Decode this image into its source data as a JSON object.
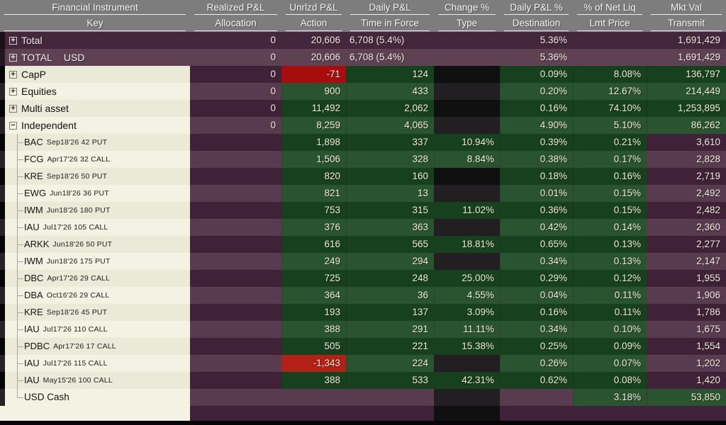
{
  "header": {
    "row1": [
      "Financial Instrument",
      "Realized P&L",
      "Unrlzd P&L",
      "Daily P&L",
      "Change %",
      "Daily P&L %",
      "% of Net Liq",
      "Mkt Val"
    ],
    "row2": [
      "Key",
      "Allocation",
      "Action",
      "Time in Force",
      "Type",
      "Destination",
      "Lmt Price",
      "Transmit"
    ]
  },
  "colors": {
    "header_gray": "#7d7d7d",
    "row_purple_dark": "#3f2237",
    "row_purple_light": "#583b4e",
    "gain_green_dark": "#17411e",
    "gain_green_light": "#29542f",
    "loss_red": "#a80d0d",
    "empty_black": "#111011",
    "group_beige": "#ebe9d8",
    "number_text": "#f1ecdc"
  },
  "rows": [
    {
      "kind": "total",
      "shade": "dark",
      "expand": "+",
      "label": "Total",
      "currency": "",
      "allocation": "0",
      "unrlzd": "20,606",
      "daily": "6,708 (5.4%)",
      "change": "",
      "daily_pct": "5.36%",
      "net_liq": "",
      "mkt_val": "1,691,429"
    },
    {
      "kind": "total",
      "shade": "light",
      "expand": "+",
      "label": "TOTAL",
      "currency": "USD",
      "allocation": "0",
      "unrlzd": "20,606",
      "daily": "6,708 (5.4%)",
      "change": "",
      "daily_pct": "5.36%",
      "net_liq": "",
      "mkt_val": "1,691,429"
    },
    {
      "kind": "group",
      "shade": "dark",
      "expand": "+",
      "label": "CapP",
      "allocation": "0",
      "unrlzd": "-71",
      "daily": "124",
      "change": "",
      "daily_pct": "0.09%",
      "net_liq": "8.08%",
      "mkt_val": "136,797"
    },
    {
      "kind": "group",
      "shade": "light",
      "expand": "+",
      "label": "Equities",
      "allocation": "0",
      "unrlzd": "900",
      "daily": "433",
      "change": "",
      "daily_pct": "0.20%",
      "net_liq": "12.67%",
      "mkt_val": "214,449"
    },
    {
      "kind": "group",
      "shade": "dark",
      "expand": "+",
      "label": "Multi asset",
      "allocation": "0",
      "unrlzd": "11,492",
      "daily": "2,062",
      "change": "",
      "daily_pct": "0.16%",
      "net_liq": "74.10%",
      "mkt_val": "1,253,895"
    },
    {
      "kind": "group",
      "shade": "light",
      "expand": "−",
      "label": "Independent",
      "allocation": "0",
      "unrlzd": "8,259",
      "daily": "4,065",
      "change": "",
      "daily_pct": "4.90%",
      "net_liq": "5.10%",
      "mkt_val": "86,262"
    },
    {
      "kind": "detail",
      "shade": "dark",
      "tree": "mid",
      "symbol": "BAC",
      "contract": "Sep18'26 42 PUT",
      "allocation": "",
      "unrlzd": "1,898",
      "daily": "337",
      "change": "10.94%",
      "daily_pct": "0.39%",
      "net_liq": "0.21%",
      "mkt_val": "3,610"
    },
    {
      "kind": "detail",
      "shade": "light",
      "tree": "mid",
      "symbol": "FCG",
      "contract": "Apr17'26 32 CALL",
      "allocation": "",
      "unrlzd": "1,506",
      "daily": "328",
      "change": "8.84%",
      "daily_pct": "0.38%",
      "net_liq": "0.17%",
      "mkt_val": "2,828"
    },
    {
      "kind": "detail",
      "shade": "dark",
      "tree": "mid",
      "symbol": "KRE",
      "contract": "Sep18'26 50 PUT",
      "allocation": "",
      "unrlzd": "820",
      "daily": "160",
      "change": "",
      "daily_pct": "0.18%",
      "net_liq": "0.16%",
      "mkt_val": "2,719"
    },
    {
      "kind": "detail",
      "shade": "light",
      "tree": "mid",
      "symbol": "EWG",
      "contract": "Jun18'26 36 PUT",
      "allocation": "",
      "unrlzd": "821",
      "daily": "13",
      "change": "",
      "daily_pct": "0.01%",
      "net_liq": "0.15%",
      "mkt_val": "2,492"
    },
    {
      "kind": "detail",
      "shade": "dark",
      "tree": "mid",
      "symbol": "IWM",
      "contract": "Jun18'26 180 PUT",
      "allocation": "",
      "unrlzd": "753",
      "daily": "315",
      "change": "11.02%",
      "daily_pct": "0.36%",
      "net_liq": "0.15%",
      "mkt_val": "2,482"
    },
    {
      "kind": "detail",
      "shade": "light",
      "tree": "mid",
      "symbol": "IAU",
      "contract": "Jul17'26 105 CALL",
      "allocation": "",
      "unrlzd": "376",
      "daily": "363",
      "change": "",
      "daily_pct": "0.42%",
      "net_liq": "0.14%",
      "mkt_val": "2,360"
    },
    {
      "kind": "detail",
      "shade": "dark",
      "tree": "mid",
      "symbol": "ARKK",
      "contract": "Jun18'26 50 PUT",
      "allocation": "",
      "unrlzd": "616",
      "daily": "565",
      "change": "18.81%",
      "daily_pct": "0.65%",
      "net_liq": "0.13%",
      "mkt_val": "2,277"
    },
    {
      "kind": "detail",
      "shade": "light",
      "tree": "mid",
      "symbol": "IWM",
      "contract": "Jun18'26 175 PUT",
      "allocation": "",
      "unrlzd": "249",
      "daily": "294",
      "change": "",
      "daily_pct": "0.34%",
      "net_liq": "0.13%",
      "mkt_val": "2,147"
    },
    {
      "kind": "detail",
      "shade": "dark",
      "tree": "mid",
      "symbol": "DBC",
      "contract": "Apr17'26 29 CALL",
      "allocation": "",
      "unrlzd": "725",
      "daily": "248",
      "change": "25.00%",
      "daily_pct": "0.29%",
      "net_liq": "0.12%",
      "mkt_val": "1,955"
    },
    {
      "kind": "detail",
      "shade": "light",
      "tree": "mid",
      "symbol": "DBA",
      "contract": "Oct16'26 29 CALL",
      "allocation": "",
      "unrlzd": "364",
      "daily": "36",
      "change": "4.55%",
      "daily_pct": "0.04%",
      "net_liq": "0.11%",
      "mkt_val": "1,906"
    },
    {
      "kind": "detail",
      "shade": "dark",
      "tree": "mid",
      "symbol": "KRE",
      "contract": "Sep18'26 45 PUT",
      "allocation": "",
      "unrlzd": "193",
      "daily": "137",
      "change": "3.09%",
      "daily_pct": "0.16%",
      "net_liq": "0.11%",
      "mkt_val": "1,786"
    },
    {
      "kind": "detail",
      "shade": "light",
      "tree": "mid",
      "symbol": "IAU",
      "contract": "Jul17'26 110 CALL",
      "allocation": "",
      "unrlzd": "388",
      "daily": "291",
      "change": "11.11%",
      "daily_pct": "0.34%",
      "net_liq": "0.10%",
      "mkt_val": "1,675"
    },
    {
      "kind": "detail",
      "shade": "dark",
      "tree": "mid",
      "symbol": "PDBC",
      "contract": "Apr17'26 17 CALL",
      "allocation": "",
      "unrlzd": "505",
      "daily": "221",
      "change": "15.38%",
      "daily_pct": "0.25%",
      "net_liq": "0.09%",
      "mkt_val": "1,554"
    },
    {
      "kind": "detail",
      "shade": "light",
      "tree": "mid",
      "symbol": "IAU",
      "contract": "Jul17'26 115 CALL",
      "allocation": "",
      "unrlzd": "-1,343",
      "daily": "224",
      "change": "",
      "daily_pct": "0.26%",
      "net_liq": "0.07%",
      "mkt_val": "1,202"
    },
    {
      "kind": "detail",
      "shade": "dark",
      "tree": "mid",
      "symbol": "IAU",
      "contract": "May15'26 100 CALL",
      "allocation": "",
      "unrlzd": "388",
      "daily": "533",
      "change": "42.31%",
      "daily_pct": "0.62%",
      "net_liq": "0.08%",
      "mkt_val": "1,420"
    },
    {
      "kind": "cash",
      "shade": "light",
      "tree": "last",
      "label": "USD Cash",
      "allocation": "",
      "unrlzd": "",
      "daily": "",
      "change": "",
      "daily_pct": "",
      "net_liq": "3.18%",
      "mkt_val": "53,850"
    }
  ]
}
